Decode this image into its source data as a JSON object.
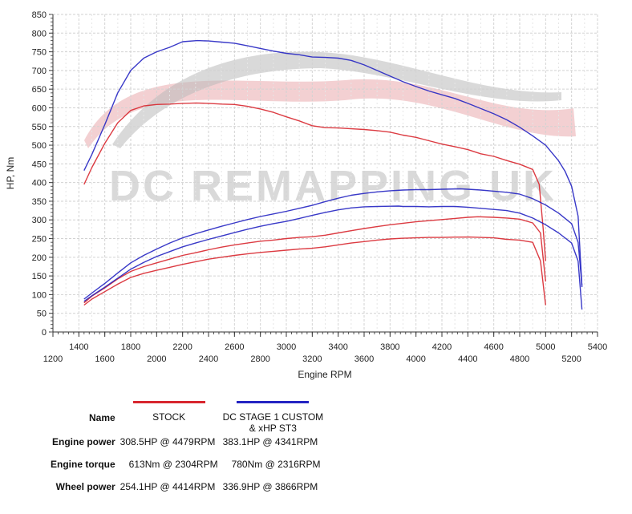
{
  "chart_data": {
    "type": "line",
    "xlabel": "Engine RPM",
    "ylabel": "HP, Nm",
    "xlim": [
      1200,
      5400
    ],
    "ylim": [
      0,
      850
    ],
    "x_ticks": [
      1200,
      1400,
      1600,
      1800,
      2000,
      2200,
      2400,
      2600,
      2800,
      3000,
      3200,
      3400,
      3600,
      3800,
      4000,
      4200,
      4400,
      4600,
      4800,
      5000,
      5200,
      5400
    ],
    "y_ticks": [
      0,
      50,
      100,
      150,
      200,
      250,
      300,
      350,
      400,
      450,
      500,
      550,
      600,
      650,
      700,
      750,
      800,
      850
    ],
    "grid": true,
    "watermark": "DC REMAPPING UK",
    "series": [
      {
        "name": "STOCK",
        "measure": "Engine torque",
        "color": "#d8262e",
        "points": [
          [
            1440,
            395
          ],
          [
            1500,
            440
          ],
          [
            1600,
            505
          ],
          [
            1700,
            560
          ],
          [
            1800,
            593
          ],
          [
            1900,
            605
          ],
          [
            2000,
            609
          ],
          [
            2100,
            610
          ],
          [
            2200,
            612
          ],
          [
            2304,
            613
          ],
          [
            2400,
            612
          ],
          [
            2500,
            610
          ],
          [
            2600,
            609
          ],
          [
            2700,
            604
          ],
          [
            2800,
            597
          ],
          [
            2900,
            588
          ],
          [
            3000,
            576
          ],
          [
            3100,
            565
          ],
          [
            3200,
            552
          ],
          [
            3300,
            547
          ],
          [
            3400,
            546
          ],
          [
            3500,
            544
          ],
          [
            3600,
            542
          ],
          [
            3700,
            539
          ],
          [
            3800,
            535
          ],
          [
            3900,
            527
          ],
          [
            4000,
            521
          ],
          [
            4100,
            512
          ],
          [
            4200,
            503
          ],
          [
            4300,
            496
          ],
          [
            4400,
            488
          ],
          [
            4500,
            477
          ],
          [
            4600,
            470
          ],
          [
            4700,
            459
          ],
          [
            4800,
            449
          ],
          [
            4900,
            435
          ],
          [
            4950,
            395
          ],
          [
            4980,
            280
          ],
          [
            5000,
            190
          ]
        ]
      },
      {
        "name": "STOCK",
        "measure": "Engine power",
        "color": "#d8262e",
        "points": [
          [
            1440,
            78
          ],
          [
            1500,
            96
          ],
          [
            1600,
            118
          ],
          [
            1700,
            142
          ],
          [
            1800,
            162
          ],
          [
            1900,
            175
          ],
          [
            2000,
            185
          ],
          [
            2100,
            195
          ],
          [
            2200,
            205
          ],
          [
            2300,
            212
          ],
          [
            2400,
            220
          ],
          [
            2500,
            227
          ],
          [
            2600,
            233
          ],
          [
            2700,
            238
          ],
          [
            2800,
            243
          ],
          [
            2900,
            246
          ],
          [
            3000,
            250
          ],
          [
            3100,
            253
          ],
          [
            3200,
            255
          ],
          [
            3300,
            259
          ],
          [
            3400,
            265
          ],
          [
            3500,
            271
          ],
          [
            3600,
            277
          ],
          [
            3700,
            282
          ],
          [
            3800,
            287
          ],
          [
            3900,
            291
          ],
          [
            4000,
            295
          ],
          [
            4100,
            298
          ],
          [
            4200,
            301
          ],
          [
            4300,
            304
          ],
          [
            4400,
            307
          ],
          [
            4479,
            308.5
          ],
          [
            4600,
            307
          ],
          [
            4700,
            305
          ],
          [
            4800,
            302
          ],
          [
            4900,
            292
          ],
          [
            4960,
            265
          ],
          [
            5000,
            135
          ]
        ]
      },
      {
        "name": "STOCK",
        "measure": "Wheel power",
        "color": "#d8262e",
        "points": [
          [
            1440,
            72
          ],
          [
            1500,
            88
          ],
          [
            1600,
            108
          ],
          [
            1700,
            128
          ],
          [
            1800,
            146
          ],
          [
            1900,
            157
          ],
          [
            2000,
            165
          ],
          [
            2100,
            173
          ],
          [
            2200,
            181
          ],
          [
            2300,
            188
          ],
          [
            2400,
            195
          ],
          [
            2500,
            200
          ],
          [
            2600,
            205
          ],
          [
            2700,
            209
          ],
          [
            2800,
            213
          ],
          [
            2900,
            216
          ],
          [
            3000,
            219
          ],
          [
            3100,
            222
          ],
          [
            3200,
            224
          ],
          [
            3300,
            228
          ],
          [
            3400,
            233
          ],
          [
            3500,
            238
          ],
          [
            3600,
            242
          ],
          [
            3700,
            246
          ],
          [
            3800,
            249
          ],
          [
            3900,
            251
          ],
          [
            4000,
            252
          ],
          [
            4100,
            253
          ],
          [
            4200,
            253
          ],
          [
            4300,
            254
          ],
          [
            4414,
            254.1
          ],
          [
            4500,
            253
          ],
          [
            4600,
            252
          ],
          [
            4700,
            248
          ],
          [
            4800,
            246
          ],
          [
            4900,
            240
          ],
          [
            4960,
            190
          ],
          [
            5000,
            72
          ]
        ]
      },
      {
        "name": "DC STAGE 1 CUSTOM & xHP ST3",
        "measure": "Engine torque",
        "color": "#2424c2",
        "points": [
          [
            1440,
            432
          ],
          [
            1500,
            475
          ],
          [
            1600,
            555
          ],
          [
            1700,
            640
          ],
          [
            1800,
            700
          ],
          [
            1900,
            733
          ],
          [
            2000,
            750
          ],
          [
            2100,
            762
          ],
          [
            2200,
            777
          ],
          [
            2316,
            780
          ],
          [
            2400,
            779
          ],
          [
            2500,
            776
          ],
          [
            2600,
            773
          ],
          [
            2700,
            766
          ],
          [
            2800,
            759
          ],
          [
            2900,
            752
          ],
          [
            3000,
            746
          ],
          [
            3100,
            742
          ],
          [
            3200,
            736
          ],
          [
            3300,
            735
          ],
          [
            3400,
            733
          ],
          [
            3500,
            727
          ],
          [
            3600,
            715
          ],
          [
            3700,
            700
          ],
          [
            3800,
            685
          ],
          [
            3900,
            670
          ],
          [
            4000,
            657
          ],
          [
            4100,
            645
          ],
          [
            4200,
            635
          ],
          [
            4300,
            625
          ],
          [
            4400,
            612
          ],
          [
            4500,
            598
          ],
          [
            4600,
            584
          ],
          [
            4700,
            568
          ],
          [
            4800,
            548
          ],
          [
            4900,
            525
          ],
          [
            5000,
            500
          ],
          [
            5100,
            458
          ],
          [
            5150,
            430
          ],
          [
            5200,
            390
          ],
          [
            5250,
            310
          ],
          [
            5280,
            120
          ]
        ]
      },
      {
        "name": "DC STAGE 1 CUSTOM & xHP ST3",
        "measure": "Engine power",
        "color": "#2424c2",
        "points": [
          [
            1440,
            88
          ],
          [
            1500,
            104
          ],
          [
            1600,
            130
          ],
          [
            1700,
            158
          ],
          [
            1800,
            185
          ],
          [
            1900,
            205
          ],
          [
            2000,
            222
          ],
          [
            2100,
            238
          ],
          [
            2200,
            252
          ],
          [
            2300,
            263
          ],
          [
            2400,
            273
          ],
          [
            2500,
            283
          ],
          [
            2600,
            292
          ],
          [
            2700,
            301
          ],
          [
            2800,
            309
          ],
          [
            2900,
            316
          ],
          [
            3000,
            323
          ],
          [
            3100,
            331
          ],
          [
            3200,
            339
          ],
          [
            3300,
            349
          ],
          [
            3400,
            358
          ],
          [
            3500,
            366
          ],
          [
            3600,
            371
          ],
          [
            3700,
            375
          ],
          [
            3800,
            378
          ],
          [
            3900,
            380
          ],
          [
            4000,
            381
          ],
          [
            4100,
            381
          ],
          [
            4200,
            382
          ],
          [
            4341,
            383.1
          ],
          [
            4400,
            382
          ],
          [
            4500,
            380
          ],
          [
            4600,
            377
          ],
          [
            4700,
            374
          ],
          [
            4800,
            369
          ],
          [
            4900,
            357
          ],
          [
            5000,
            340
          ],
          [
            5100,
            318
          ],
          [
            5200,
            290
          ],
          [
            5250,
            240
          ],
          [
            5280,
            125
          ]
        ]
      },
      {
        "name": "DC STAGE 1 CUSTOM & xHP ST3",
        "measure": "Wheel power",
        "color": "#2424c2",
        "points": [
          [
            1440,
            82
          ],
          [
            1500,
            97
          ],
          [
            1600,
            120
          ],
          [
            1700,
            144
          ],
          [
            1800,
            168
          ],
          [
            1900,
            186
          ],
          [
            2000,
            202
          ],
          [
            2100,
            215
          ],
          [
            2200,
            228
          ],
          [
            2300,
            238
          ],
          [
            2400,
            248
          ],
          [
            2500,
            257
          ],
          [
            2600,
            266
          ],
          [
            2700,
            275
          ],
          [
            2800,
            283
          ],
          [
            2900,
            290
          ],
          [
            3000,
            296
          ],
          [
            3100,
            304
          ],
          [
            3200,
            312
          ],
          [
            3300,
            320
          ],
          [
            3400,
            327
          ],
          [
            3500,
            332
          ],
          [
            3600,
            335
          ],
          [
            3700,
            336
          ],
          [
            3800,
            336.5
          ],
          [
            3866,
            336.9
          ],
          [
            3900,
            336
          ],
          [
            4000,
            336
          ],
          [
            4100,
            335
          ],
          [
            4200,
            336
          ],
          [
            4300,
            336
          ],
          [
            4400,
            334
          ],
          [
            4500,
            331
          ],
          [
            4600,
            328
          ],
          [
            4700,
            325
          ],
          [
            4800,
            318
          ],
          [
            4900,
            305
          ],
          [
            5000,
            287
          ],
          [
            5100,
            265
          ],
          [
            5200,
            238
          ],
          [
            5250,
            190
          ],
          [
            5280,
            60
          ]
        ]
      }
    ]
  },
  "summary": {
    "header_label": "Name",
    "columns": [
      {
        "name": "STOCK",
        "color": "#d8262e"
      },
      {
        "name_line1": "DC STAGE 1 CUSTOM",
        "name_line2": "& xHP ST3",
        "color": "#2424c2"
      }
    ],
    "rows": [
      {
        "label": "Engine power",
        "stock": "308.5HP @  4479RPM",
        "tuned": "383.1HP @  4341RPM"
      },
      {
        "label": "Engine torque",
        "stock": "613Nm @ 2304RPM",
        "tuned": "780Nm @ 2316RPM"
      },
      {
        "label": "Wheel power",
        "stock": "254.1HP @  4414RPM",
        "tuned": "336.9HP @  3866RPM"
      }
    ]
  }
}
